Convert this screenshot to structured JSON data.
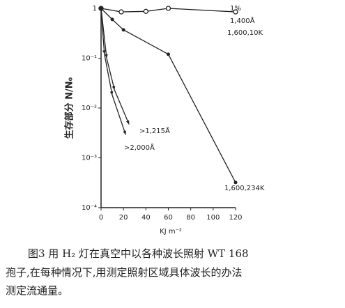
{
  "chart_data": {
    "type": "line",
    "xlabel": "KJ m⁻²",
    "ylabel": "生存部分 N/N₀",
    "xlim": [
      0,
      120
    ],
    "xticks": [
      0,
      20,
      40,
      60,
      80,
      100,
      120
    ],
    "ylim": [
      0.0001,
      1
    ],
    "log_y": true,
    "yticks": [
      {
        "value": 1,
        "label": "1"
      },
      {
        "value": 0.1,
        "label": "10⁻¹"
      },
      {
        "value": 0.01,
        "label": "10⁻²"
      },
      {
        "value": 0.001,
        "label": "10⁻³"
      },
      {
        "value": 0.0001,
        "label": "10⁻⁴"
      }
    ],
    "annotations": [
      "1%",
      "1,400Å"
    ],
    "series": [
      {
        "name": "1,600,10K",
        "color": "#222",
        "marker": "open",
        "x": [
          0,
          18,
          40,
          60,
          120
        ],
        "values": [
          1,
          0.85,
          0.87,
          1,
          0.85
        ]
      },
      {
        "name": "1,600,234K",
        "color": "#222",
        "marker": "dot",
        "x": [
          0,
          10,
          20,
          60,
          120
        ],
        "values": [
          1,
          0.6,
          0.37,
          0.12,
          0.00032
        ]
      },
      {
        "name": ">1,215Å",
        "color": "#222",
        "marker": "arrow",
        "x": [
          0,
          5,
          12,
          25
        ],
        "values": [
          1,
          0.1,
          0.023,
          0.0047
        ]
      },
      {
        "name": ">2,000Å",
        "color": "#222",
        "marker": "arrow",
        "x": [
          0,
          3,
          10,
          22
        ],
        "values": [
          1,
          0.12,
          0.018,
          0.0029
        ]
      }
    ],
    "caption": [
      "图3 用 H₂ 灯在真空中以各种波长照射 WT 168",
      "孢子,在每种情况下,用测定照射区域具体波长的办法",
      "测定流通量。"
    ]
  }
}
